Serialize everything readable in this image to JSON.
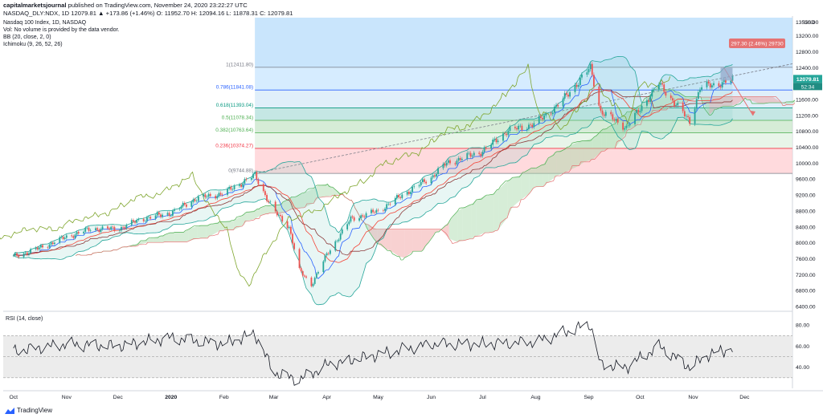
{
  "header": {
    "publisher": "capitalmarketsjournal",
    "published_text": "published on TradingView.com, November 24, 2020 23:22:27 UTC",
    "ohlc_line": "NASDAQ_DLY:NDX, 1D  12079.81  ▲ +173.86 (+1.46%)  O: 11952.70  H: 12094.16  L: 11878.31  C: 12079.81"
  },
  "legend": {
    "title": "Nasdaq 100 Index, 1D, NASDAQ",
    "vol_note": "Vol: No volume is provided by the data vendor.",
    "bb": "BB (20, close, 2, 0)",
    "ichimoku": "Ichimoku (9, 26, 52, 26)"
  },
  "brand": {
    "label": "TradingView"
  },
  "colors": {
    "up": "#26a69a",
    "down": "#ef5350",
    "bb_line": "#2962ff",
    "ichimoku_green": "#4caf50",
    "ichimoku_red": "#e57373",
    "lagging": "#7fa62e",
    "price_badge": "#26a69a",
    "annotation": "#e57373"
  },
  "chart_data": {
    "type": "candlestick",
    "title": "Nasdaq 100 Index, 1D, NASDAQ",
    "xlabel": "",
    "ylabel": "",
    "currency": "USD",
    "y_axis": {
      "min": 6300,
      "max": 13700,
      "ticks": [
        "6400.00",
        "6800.00",
        "7200.00",
        "7600.00",
        "8000.00",
        "8400.00",
        "8800.00",
        "9200.00",
        "9600.00",
        "10000.00",
        "10400.00",
        "10800.00",
        "11200.00",
        "11600.00",
        "12000.00",
        "12400.00",
        "12800.00",
        "13200.00",
        "13550.00"
      ]
    },
    "x_axis": {
      "labels": [
        "Oct",
        "Nov",
        "Dec",
        "2020",
        "Feb",
        "Mar",
        "Apr",
        "May",
        "Jun",
        "Jul",
        "Aug",
        "Sep",
        "Oct",
        "Nov",
        "Dec"
      ]
    },
    "last_price": {
      "label": "12079.81",
      "countdown": "52:34",
      "value": 12079.81
    },
    "series_close": [
      {
        "d": "2019-10-01",
        "v": 7650
      },
      {
        "d": "2019-10-15",
        "v": 7850
      },
      {
        "d": "2019-11-01",
        "v": 8150
      },
      {
        "d": "2019-11-15",
        "v": 8350
      },
      {
        "d": "2019-12-01",
        "v": 8350
      },
      {
        "d": "2019-12-15",
        "v": 8600
      },
      {
        "d": "2020-01-01",
        "v": 8750
      },
      {
        "d": "2020-01-15",
        "v": 9100
      },
      {
        "d": "2020-02-01",
        "v": 9250
      },
      {
        "d": "2020-02-19",
        "v": 9700
      },
      {
        "d": "2020-03-01",
        "v": 8800
      },
      {
        "d": "2020-03-10",
        "v": 8400
      },
      {
        "d": "2020-03-16",
        "v": 7300
      },
      {
        "d": "2020-03-23",
        "v": 6950
      },
      {
        "d": "2020-04-01",
        "v": 7700
      },
      {
        "d": "2020-04-15",
        "v": 8600
      },
      {
        "d": "2020-05-01",
        "v": 8800
      },
      {
        "d": "2020-05-15",
        "v": 9200
      },
      {
        "d": "2020-06-01",
        "v": 9650
      },
      {
        "d": "2020-06-10",
        "v": 10000
      },
      {
        "d": "2020-07-01",
        "v": 10300
      },
      {
        "d": "2020-07-15",
        "v": 10800
      },
      {
        "d": "2020-08-01",
        "v": 11000
      },
      {
        "d": "2020-08-15",
        "v": 11500
      },
      {
        "d": "2020-09-02",
        "v": 12400
      },
      {
        "d": "2020-09-08",
        "v": 11300
      },
      {
        "d": "2020-09-23",
        "v": 10900
      },
      {
        "d": "2020-10-12",
        "v": 12000
      },
      {
        "d": "2020-10-30",
        "v": 11050
      },
      {
        "d": "2020-11-05",
        "v": 11900
      },
      {
        "d": "2020-11-24",
        "v": 12079.81
      }
    ],
    "fibonacci": [
      {
        "ratio": "1",
        "label": "1(12411.80)",
        "value": 12411.8,
        "color": "#787b86"
      },
      {
        "ratio": "0.786",
        "label": "0.786(11841.08)",
        "value": 11841.08,
        "color": "#2962ff"
      },
      {
        "ratio": "0.618",
        "label": "0.618(11393.04)",
        "value": 11393.04,
        "color": "#089981"
      },
      {
        "ratio": "0.5",
        "label": "0.5(11078.34)",
        "value": 11078.34,
        "color": "#4caf50"
      },
      {
        "ratio": "0.382",
        "label": "0.382(10763.64)",
        "value": 10763.64,
        "color": "#4caf50"
      },
      {
        "ratio": "0.236",
        "label": "0.236(10374.27)",
        "value": 10374.27,
        "color": "#f23645"
      },
      {
        "ratio": "0",
        "label": "0(9744.88)",
        "value": 9744.88,
        "color": "#787b86"
      }
    ],
    "annotation": {
      "label": "297.30 (2.46%) 29730"
    },
    "rsi": {
      "label": "RSI (14, close)",
      "ticks": [
        "80.00",
        "60.00",
        "40.00"
      ],
      "band": [
        30,
        70
      ],
      "series": [
        {
          "d": "2019-10-01",
          "v": 55
        },
        {
          "d": "2019-11-01",
          "v": 62
        },
        {
          "d": "2019-12-01",
          "v": 60
        },
        {
          "d": "2020-01-01",
          "v": 68
        },
        {
          "d": "2020-02-01",
          "v": 62
        },
        {
          "d": "2020-02-19",
          "v": 72
        },
        {
          "d": "2020-03-01",
          "v": 35
        },
        {
          "d": "2020-03-16",
          "v": 28
        },
        {
          "d": "2020-04-01",
          "v": 42
        },
        {
          "d": "2020-05-01",
          "v": 52
        },
        {
          "d": "2020-06-01",
          "v": 62
        },
        {
          "d": "2020-07-01",
          "v": 62
        },
        {
          "d": "2020-08-01",
          "v": 64
        },
        {
          "d": "2020-09-02",
          "v": 81
        },
        {
          "d": "2020-09-08",
          "v": 42
        },
        {
          "d": "2020-09-23",
          "v": 40
        },
        {
          "d": "2020-10-12",
          "v": 60
        },
        {
          "d": "2020-10-30",
          "v": 40
        },
        {
          "d": "2020-11-10",
          "v": 52
        },
        {
          "d": "2020-11-24",
          "v": 58
        }
      ]
    }
  }
}
